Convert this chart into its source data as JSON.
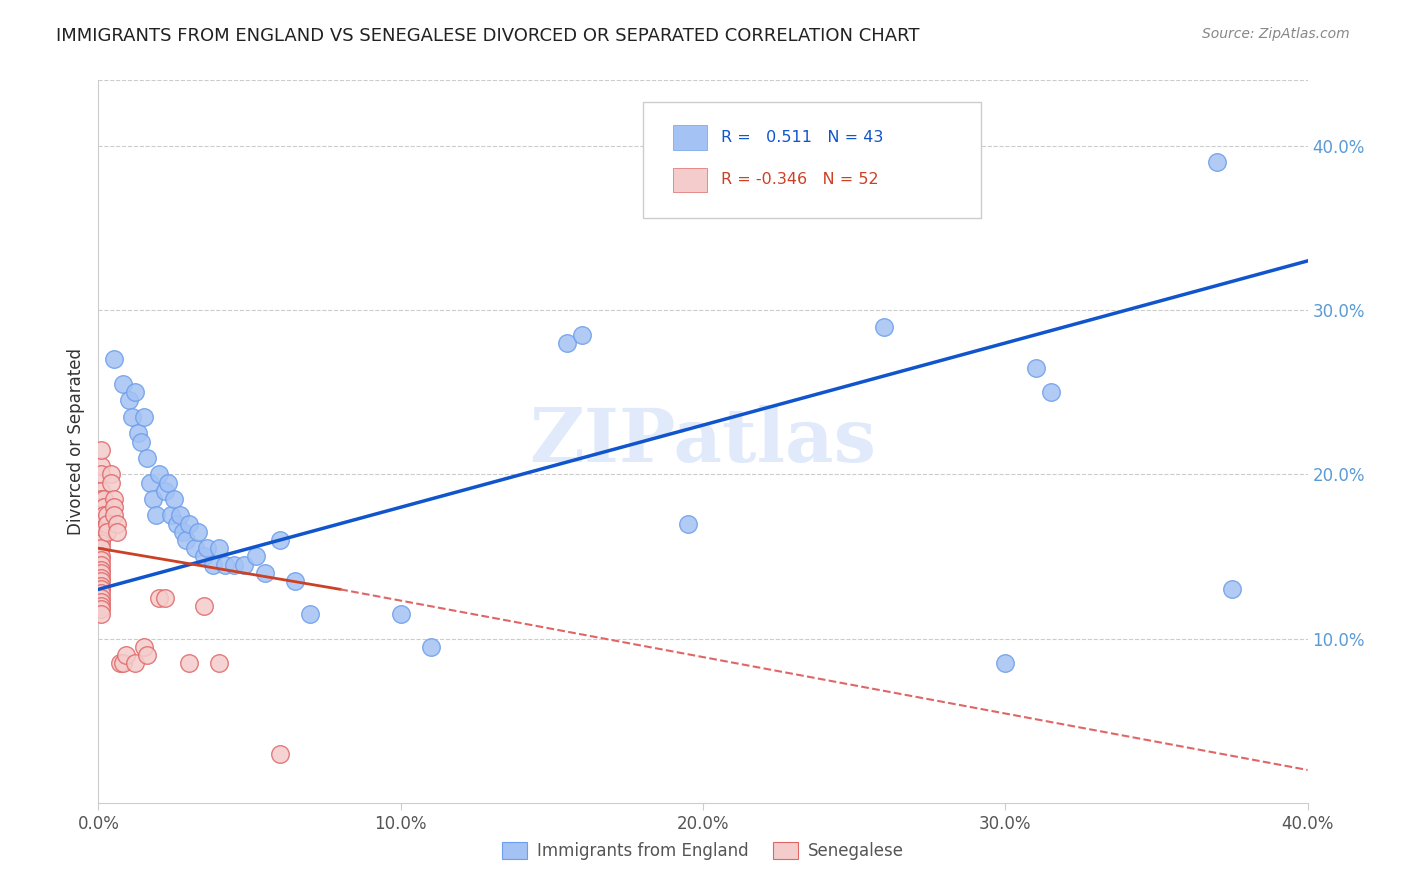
{
  "title": "IMMIGRANTS FROM ENGLAND VS SENEGALESE DIVORCED OR SEPARATED CORRELATION CHART",
  "source": "Source: ZipAtlas.com",
  "ylabel": "Divorced or Separated",
  "xlim": [
    0.0,
    0.42
  ],
  "ylim": [
    -0.02,
    0.46
  ],
  "plot_xlim": [
    0.0,
    0.4
  ],
  "plot_ylim": [
    0.0,
    0.44
  ],
  "xticks": [
    0.0,
    0.1,
    0.2,
    0.3,
    0.4
  ],
  "xtick_labels": [
    "0.0%",
    "10.0%",
    "20.0%",
    "30.0%",
    "40.0%"
  ],
  "yticks_right": [
    0.1,
    0.2,
    0.3,
    0.4
  ],
  "ytick_labels_right": [
    "10.0%",
    "20.0%",
    "30.0%",
    "40.0%"
  ],
  "legend_label1": "Immigrants from England",
  "legend_label2": "Senegalese",
  "watermark": "ZIPatlas",
  "blue_color": "#a4c2f4",
  "pink_color": "#f4cccc",
  "blue_edge_color": "#6d9eeb",
  "pink_edge_color": "#e06666",
  "blue_line_color": "#1155cc",
  "pink_line_solid_color": "#cc4125",
  "pink_line_dash_color": "#e06666",
  "blue_scatter": [
    [
      0.005,
      0.27
    ],
    [
      0.008,
      0.255
    ],
    [
      0.01,
      0.245
    ],
    [
      0.011,
      0.235
    ],
    [
      0.012,
      0.25
    ],
    [
      0.013,
      0.225
    ],
    [
      0.014,
      0.22
    ],
    [
      0.015,
      0.235
    ],
    [
      0.016,
      0.21
    ],
    [
      0.017,
      0.195
    ],
    [
      0.018,
      0.185
    ],
    [
      0.019,
      0.175
    ],
    [
      0.02,
      0.2
    ],
    [
      0.022,
      0.19
    ],
    [
      0.023,
      0.195
    ],
    [
      0.024,
      0.175
    ],
    [
      0.025,
      0.185
    ],
    [
      0.026,
      0.17
    ],
    [
      0.027,
      0.175
    ],
    [
      0.028,
      0.165
    ],
    [
      0.029,
      0.16
    ],
    [
      0.03,
      0.17
    ],
    [
      0.032,
      0.155
    ],
    [
      0.033,
      0.165
    ],
    [
      0.035,
      0.15
    ],
    [
      0.036,
      0.155
    ],
    [
      0.038,
      0.145
    ],
    [
      0.04,
      0.155
    ],
    [
      0.042,
      0.145
    ],
    [
      0.045,
      0.145
    ],
    [
      0.048,
      0.145
    ],
    [
      0.052,
      0.15
    ],
    [
      0.055,
      0.14
    ],
    [
      0.06,
      0.16
    ],
    [
      0.065,
      0.135
    ],
    [
      0.07,
      0.115
    ],
    [
      0.1,
      0.115
    ],
    [
      0.11,
      0.095
    ],
    [
      0.155,
      0.28
    ],
    [
      0.16,
      0.285
    ],
    [
      0.195,
      0.17
    ],
    [
      0.26,
      0.29
    ],
    [
      0.3,
      0.085
    ],
    [
      0.315,
      0.25
    ],
    [
      0.31,
      0.265
    ],
    [
      0.37,
      0.39
    ],
    [
      0.375,
      0.13
    ]
  ],
  "pink_scatter": [
    [
      0.001,
      0.205
    ],
    [
      0.001,
      0.215
    ],
    [
      0.001,
      0.2
    ],
    [
      0.001,
      0.19
    ],
    [
      0.001,
      0.185
    ],
    [
      0.001,
      0.18
    ],
    [
      0.001,
      0.175
    ],
    [
      0.001,
      0.17
    ],
    [
      0.001,
      0.165
    ],
    [
      0.001,
      0.16
    ],
    [
      0.001,
      0.158
    ],
    [
      0.001,
      0.155
    ],
    [
      0.001,
      0.15
    ],
    [
      0.001,
      0.148
    ],
    [
      0.001,
      0.145
    ],
    [
      0.001,
      0.142
    ],
    [
      0.001,
      0.14
    ],
    [
      0.001,
      0.137
    ],
    [
      0.001,
      0.135
    ],
    [
      0.001,
      0.132
    ],
    [
      0.001,
      0.13
    ],
    [
      0.001,
      0.128
    ],
    [
      0.001,
      0.125
    ],
    [
      0.001,
      0.122
    ],
    [
      0.001,
      0.12
    ],
    [
      0.001,
      0.118
    ],
    [
      0.001,
      0.115
    ],
    [
      0.002,
      0.185
    ],
    [
      0.002,
      0.18
    ],
    [
      0.002,
      0.175
    ],
    [
      0.003,
      0.175
    ],
    [
      0.003,
      0.17
    ],
    [
      0.003,
      0.165
    ],
    [
      0.004,
      0.2
    ],
    [
      0.004,
      0.195
    ],
    [
      0.005,
      0.185
    ],
    [
      0.005,
      0.18
    ],
    [
      0.005,
      0.175
    ],
    [
      0.006,
      0.17
    ],
    [
      0.006,
      0.165
    ],
    [
      0.007,
      0.085
    ],
    [
      0.008,
      0.085
    ],
    [
      0.009,
      0.09
    ],
    [
      0.012,
      0.085
    ],
    [
      0.015,
      0.095
    ],
    [
      0.016,
      0.09
    ],
    [
      0.02,
      0.125
    ],
    [
      0.022,
      0.125
    ],
    [
      0.03,
      0.085
    ],
    [
      0.035,
      0.12
    ],
    [
      0.04,
      0.085
    ],
    [
      0.06,
      0.03
    ]
  ],
  "blue_line": [
    [
      0.0,
      0.13
    ],
    [
      0.4,
      0.33
    ]
  ],
  "pink_line_solid": [
    [
      0.0,
      0.155
    ],
    [
      0.08,
      0.13
    ]
  ],
  "pink_line_dash": [
    [
      0.08,
      0.13
    ],
    [
      0.4,
      0.02
    ]
  ]
}
